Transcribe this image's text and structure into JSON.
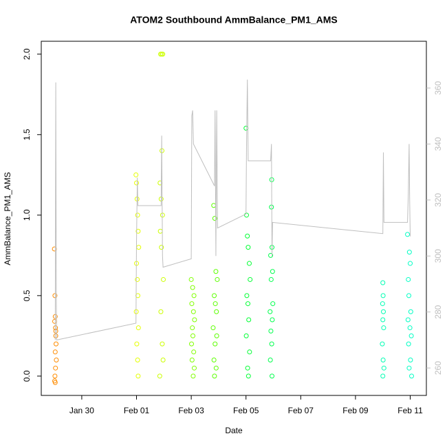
{
  "chart_data": {
    "type": "scatter",
    "title": "ATOM2 Southbound AmmBalance_PM1_AMS",
    "x_label": "Date",
    "y_label": "AmmBalance_PM1_AMS",
    "xlim": [
      -1.48,
      12.59
    ],
    "xticks": [
      {
        "value": 0,
        "label": "Jan 30"
      },
      {
        "value": 2,
        "label": "Feb 01"
      },
      {
        "value": 4,
        "label": "Feb 03"
      },
      {
        "value": 6,
        "label": "Feb 05"
      },
      {
        "value": 8,
        "label": "Feb 07"
      },
      {
        "value": 10,
        "label": "Feb 09"
      },
      {
        "value": 12,
        "label": "Feb 11"
      }
    ],
    "ylim": [
      -0.12,
      2.08
    ],
    "yticks": [
      {
        "value": 0,
        "label": "0.0"
      },
      0.5,
      {
        "value": 1,
        "label": "1.0"
      },
      1.5,
      {
        "value": 2,
        "label": "2.0"
      }
    ],
    "y2lim": [
      250.2,
      376.7
    ],
    "y2ticks": [
      260,
      280,
      300,
      320,
      340,
      360
    ],
    "series": [
      {
        "color": "#ff8c00",
        "x": [
          -1.0,
          -0.98,
          -0.97,
          -0.99,
          -0.96,
          -0.95,
          -0.94,
          -0.97,
          -0.93,
          -0.96,
          -0.98,
          -0.99,
          -0.97,
          -0.95
        ],
        "values": [
          0.79,
          0.5,
          0.37,
          0.34,
          0.3,
          0.25,
          0.2,
          0.15,
          0.1,
          0.05,
          0.0,
          -0.03,
          -0.04,
          0.28
        ]
      },
      {
        "color": "#e5ff00",
        "x": [
          1.98,
          2.0,
          2.02,
          2.04,
          2.06,
          2.08,
          2.0,
          2.03,
          2.05,
          1.99,
          2.07,
          2.01,
          2.04,
          2.06
        ],
        "values": [
          1.25,
          1.2,
          1.1,
          1.0,
          0.9,
          0.8,
          0.7,
          0.6,
          0.5,
          0.4,
          0.3,
          0.2,
          0.1,
          0.0
        ]
      },
      {
        "color": "#ccff00",
        "x": [
          2.88,
          2.92,
          2.96,
          2.93,
          2.86,
          2.9,
          2.95,
          2.87,
          2.91,
          2.98,
          2.89,
          2.94,
          2.97,
          2.85
        ],
        "values": [
          2.0,
          2.0,
          2.0,
          1.4,
          1.2,
          1.1,
          1.0,
          0.9,
          0.8,
          0.6,
          0.4,
          0.2,
          0.1,
          0.0
        ]
      },
      {
        "color": "#80ff00",
        "x": [
          4.0,
          4.05,
          4.1,
          4.02,
          4.08,
          4.12,
          4.04,
          4.06,
          4.01,
          4.09,
          4.03,
          4.11,
          4.07
        ],
        "values": [
          0.6,
          0.55,
          0.5,
          0.45,
          0.4,
          0.35,
          0.3,
          0.25,
          0.2,
          0.15,
          0.1,
          0.05,
          0.0
        ]
      },
      {
        "color": "#5cff00",
        "x": [
          4.82,
          4.86,
          4.9,
          4.95,
          4.84,
          4.88,
          4.92,
          4.8,
          4.93,
          4.87,
          4.83,
          4.91,
          4.85
        ],
        "values": [
          1.06,
          0.98,
          0.65,
          0.6,
          0.5,
          0.45,
          0.4,
          0.3,
          0.25,
          0.2,
          0.1,
          0.05,
          0.0
        ]
      },
      {
        "color": "#00ff33",
        "x": [
          6.0,
          6.02,
          6.05,
          6.08,
          6.12,
          6.15,
          6.03,
          6.07,
          6.1,
          6.01,
          6.13,
          6.06,
          6.09
        ],
        "values": [
          1.54,
          1.0,
          0.87,
          0.8,
          0.7,
          0.6,
          0.5,
          0.45,
          0.35,
          0.25,
          0.15,
          0.05,
          0.0
        ]
      },
      {
        "color": "#00ff4d",
        "x": [
          6.94,
          6.93,
          6.95,
          6.9,
          6.97,
          6.92,
          6.98,
          6.88,
          6.96,
          6.91,
          6.94,
          6.89,
          6.95
        ],
        "values": [
          1.22,
          1.05,
          0.8,
          0.75,
          0.65,
          0.6,
          0.45,
          0.4,
          0.35,
          0.28,
          0.2,
          0.1,
          0.0
        ]
      },
      {
        "color": "#00ffb3",
        "x": [
          11.0,
          11.01,
          10.99,
          11.02,
          11.0,
          11.03,
          10.98,
          11.01,
          11.04,
          11.0
        ],
        "values": [
          0.58,
          0.5,
          0.45,
          0.4,
          0.35,
          0.3,
          0.2,
          0.1,
          0.05,
          0.0
        ]
      },
      {
        "color": "#00ffc4",
        "x": [
          11.9,
          11.97,
          12.0,
          11.93,
          11.95,
          12.02,
          11.92,
          11.99,
          12.04,
          11.94,
          12.01,
          11.96,
          12.05
        ],
        "values": [
          0.88,
          0.77,
          0.7,
          0.6,
          0.5,
          0.4,
          0.35,
          0.3,
          0.25,
          0.2,
          0.1,
          0.05,
          0.0
        ]
      },
      {
        "type": "line",
        "axis": "y2",
        "color": "#bebebe",
        "x": [
          -0.97,
          -0.95,
          -0.93,
          -0.92,
          1.98,
          2.0,
          2.03,
          2.05,
          2.9,
          2.92,
          2.95,
          2.97,
          4.0,
          4.02,
          4.05,
          4.08,
          4.85,
          4.87,
          4.9,
          4.93,
          4.96,
          6.0,
          6.02,
          6.05,
          6.08,
          6.9,
          6.93,
          6.95,
          6.97,
          11.0,
          11.02,
          11.04,
          11.9,
          11.93,
          11.96,
          11.98,
          12.0
        ],
        "values": [
          270,
          362,
          285,
          270,
          276,
          305,
          328,
          318,
          318,
          343,
          300,
          296,
          299,
          350,
          352,
          340,
          325,
          352,
          300,
          352,
          310,
          315,
          340,
          363,
          334,
          334,
          340,
          300,
          312,
          308,
          337,
          312,
          312,
          322,
          340,
          320,
          307
        ]
      }
    ]
  }
}
